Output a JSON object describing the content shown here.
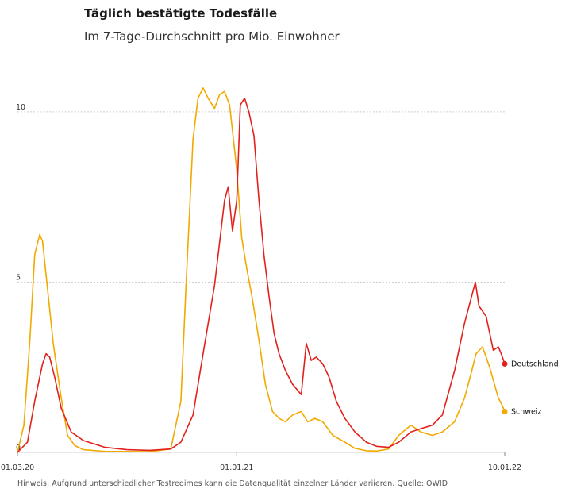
{
  "chart_data": {
    "type": "line",
    "title": "Täglich bestätigte Todesfälle",
    "subtitle": "Im 7-Tage-Durchschnitt pro Mio. Einwohner",
    "xlabel": "",
    "ylabel": "",
    "x_start": "01.03.20",
    "x_end": "10.01.22",
    "x_ticks": [
      "01.03.20",
      "01.01.21",
      "10.01.22"
    ],
    "y_ticks": [
      "0",
      "5",
      "10"
    ],
    "ylim": [
      0,
      11
    ],
    "grid": true,
    "series": [
      {
        "name": "Deutschland",
        "color": "#e2211c",
        "points": [
          [
            "01.03.20",
            0
          ],
          [
            "15.03.20",
            0.3
          ],
          [
            "25.03.20",
            1.5
          ],
          [
            "05.04.20",
            2.6
          ],
          [
            "10.04.20",
            2.9
          ],
          [
            "15.04.20",
            2.8
          ],
          [
            "22.04.20",
            2.2
          ],
          [
            "01.05.20",
            1.3
          ],
          [
            "15.05.20",
            0.6
          ],
          [
            "01.06.20",
            0.35
          ],
          [
            "01.07.20",
            0.15
          ],
          [
            "01.08.20",
            0.08
          ],
          [
            "01.09.20",
            0.06
          ],
          [
            "01.10.20",
            0.1
          ],
          [
            "15.10.20",
            0.3
          ],
          [
            "01.11.20",
            1.1
          ],
          [
            "15.11.20",
            2.9
          ],
          [
            "01.12.20",
            4.9
          ],
          [
            "15.12.20",
            7.4
          ],
          [
            "20.12.20",
            7.8
          ],
          [
            "26.12.20",
            6.5
          ],
          [
            "01.01.21",
            7.4
          ],
          [
            "06.01.21",
            10.2
          ],
          [
            "12.01.21",
            10.4
          ],
          [
            "18.01.21",
            10.0
          ],
          [
            "25.01.21",
            9.3
          ],
          [
            "01.02.21",
            7.4
          ],
          [
            "08.02.21",
            5.8
          ],
          [
            "15.02.21",
            4.6
          ],
          [
            "22.02.21",
            3.5
          ],
          [
            "01.03.21",
            2.9
          ],
          [
            "10.03.21",
            2.4
          ],
          [
            "20.03.21",
            2.0
          ],
          [
            "01.04.21",
            1.7
          ],
          [
            "08.04.21",
            3.2
          ],
          [
            "15.04.21",
            2.7
          ],
          [
            "22.04.21",
            2.8
          ],
          [
            "01.05.21",
            2.6
          ],
          [
            "10.05.21",
            2.2
          ],
          [
            "20.05.21",
            1.5
          ],
          [
            "01.06.21",
            1.0
          ],
          [
            "15.06.21",
            0.6
          ],
          [
            "01.07.21",
            0.3
          ],
          [
            "15.07.21",
            0.18
          ],
          [
            "01.08.21",
            0.15
          ],
          [
            "15.08.21",
            0.3
          ],
          [
            "01.09.21",
            0.6
          ],
          [
            "15.09.21",
            0.7
          ],
          [
            "01.10.21",
            0.8
          ],
          [
            "15.10.21",
            1.1
          ],
          [
            "01.11.21",
            2.4
          ],
          [
            "15.11.21",
            3.8
          ],
          [
            "25.11.21",
            4.6
          ],
          [
            "30.11.21",
            5.0
          ],
          [
            "05.12.21",
            4.3
          ],
          [
            "15.12.21",
            4.0
          ],
          [
            "25.12.21",
            3.0
          ],
          [
            "01.01.22",
            3.1
          ],
          [
            "05.01.22",
            2.9
          ],
          [
            "10.01.22",
            2.6
          ]
        ]
      },
      {
        "name": "Schweiz",
        "color": "#f2a900",
        "points": [
          [
            "01.03.20",
            0
          ],
          [
            "10.03.20",
            0.8
          ],
          [
            "18.03.20",
            3.2
          ],
          [
            "25.03.20",
            5.8
          ],
          [
            "01.04.20",
            6.4
          ],
          [
            "05.04.20",
            6.2
          ],
          [
            "12.04.20",
            4.8
          ],
          [
            "20.04.20",
            3.2
          ],
          [
            "01.05.20",
            1.6
          ],
          [
            "10.05.20",
            0.5
          ],
          [
            "20.05.20",
            0.2
          ],
          [
            "01.06.20",
            0.08
          ],
          [
            "01.07.20",
            0.03
          ],
          [
            "01.09.20",
            0.02
          ],
          [
            "01.10.20",
            0.1
          ],
          [
            "15.10.20",
            1.5
          ],
          [
            "22.10.20",
            4.8
          ],
          [
            "01.11.20",
            9.2
          ],
          [
            "08.11.20",
            10.4
          ],
          [
            "15.11.20",
            10.7
          ],
          [
            "22.11.20",
            10.4
          ],
          [
            "01.12.20",
            10.1
          ],
          [
            "08.12.20",
            10.5
          ],
          [
            "15.12.20",
            10.6
          ],
          [
            "22.12.20",
            10.2
          ],
          [
            "01.01.21",
            8.3
          ],
          [
            "08.01.21",
            6.3
          ],
          [
            "15.01.21",
            5.4
          ],
          [
            "22.01.21",
            4.6
          ],
          [
            "01.02.21",
            3.3
          ],
          [
            "10.02.21",
            2.0
          ],
          [
            "20.02.21",
            1.2
          ],
          [
            "01.03.21",
            1.0
          ],
          [
            "10.03.21",
            0.9
          ],
          [
            "20.03.21",
            1.1
          ],
          [
            "01.04.21",
            1.2
          ],
          [
            "10.04.21",
            0.9
          ],
          [
            "20.04.21",
            1.0
          ],
          [
            "01.05.21",
            0.9
          ],
          [
            "15.05.21",
            0.5
          ],
          [
            "01.06.21",
            0.3
          ],
          [
            "15.06.21",
            0.12
          ],
          [
            "01.07.21",
            0.05
          ],
          [
            "15.07.21",
            0.04
          ],
          [
            "01.08.21",
            0.1
          ],
          [
            "15.08.21",
            0.5
          ],
          [
            "01.09.21",
            0.8
          ],
          [
            "15.09.21",
            0.6
          ],
          [
            "01.10.21",
            0.5
          ],
          [
            "15.10.21",
            0.6
          ],
          [
            "01.11.21",
            0.9
          ],
          [
            "15.11.21",
            1.6
          ],
          [
            "25.11.21",
            2.4
          ],
          [
            "01.12.21",
            2.9
          ],
          [
            "10.12.21",
            3.1
          ],
          [
            "20.12.21",
            2.5
          ],
          [
            "01.01.22",
            1.6
          ],
          [
            "06.01.22",
            1.4
          ],
          [
            "10.01.22",
            1.2
          ]
        ]
      }
    ],
    "legend_placement": "inline-right"
  },
  "note": {
    "text": "Hinweis: Aufgrund unterschiedlicher Testregimes kann die Datenqualität einzelner Länder variieren. Quelle: ",
    "source": "OWID"
  }
}
